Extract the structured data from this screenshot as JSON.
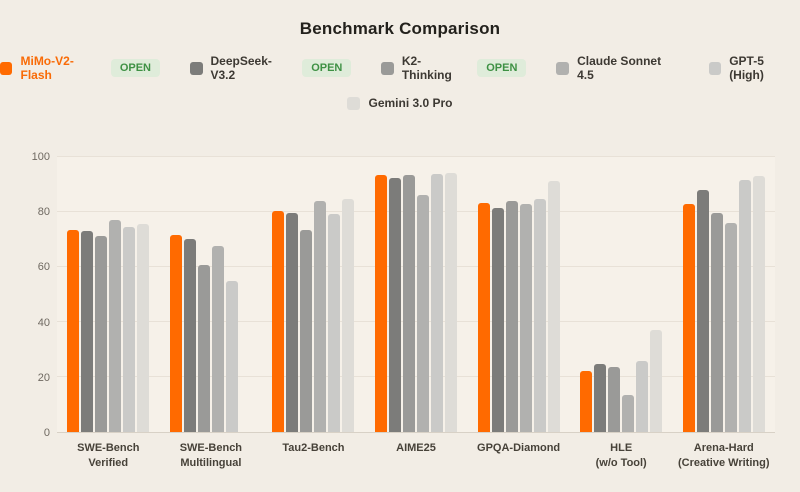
{
  "title": "Benchmark Comparison",
  "theme": {
    "page_bg": "#f2ede5",
    "plot_bg": "#f6f1e9",
    "gridline_color": "#e8e1d7",
    "axis_line_color": "#d8d1c6",
    "tick_text_color": "#6f6961",
    "x_label_color": "#474239",
    "title_color": "#23211c",
    "accent_orange": "#f96b07",
    "badge_bg": "#dfecda",
    "badge_text_color": "#3e9144"
  },
  "legend": {
    "rows": [
      [
        {
          "label": "MiMo-V2-Flash",
          "color": "#ff6a00",
          "label_color": "#f96b07",
          "badge": "OPEN"
        },
        {
          "label": "DeepSeek-V3.2",
          "color": "#7c7c7a",
          "badge": "OPEN"
        },
        {
          "label": "K2-Thinking",
          "color": "#9a9a98",
          "badge": "OPEN"
        },
        {
          "label": "Claude Sonnet 4.5",
          "color": "#b1b1af"
        },
        {
          "label": "GPT-5 (High)",
          "color": "#cacac8"
        }
      ],
      [
        {
          "label": "Gemini 3.0 Pro",
          "color": "#dedcd7"
        }
      ]
    ]
  },
  "chart_data": {
    "type": "bar",
    "title": "Benchmark Comparison",
    "categories": [
      "SWE-Bench\nVerified",
      "SWE-Bench\nMultilingual",
      "Tau2-Bench",
      "AIME25",
      "GPQA-Diamond",
      "HLE\n(w/o Tool)",
      "Arena-Hard\n(Creative Writing)"
    ],
    "series": [
      {
        "name": "MiMo-V2-Flash",
        "open": true,
        "color": "#ff6a00",
        "values": [
          73.4,
          71.5,
          80.2,
          93.6,
          83.3,
          22.1,
          82.8
        ]
      },
      {
        "name": "DeepSeek-V3.2",
        "open": true,
        "color": "#7c7c7a",
        "values": [
          73.0,
          70.2,
          79.6,
          92.5,
          81.6,
          24.9,
          88.1
        ]
      },
      {
        "name": "K2-Thinking",
        "open": true,
        "color": "#9a9a98",
        "values": [
          71.1,
          60.9,
          73.4,
          93.5,
          84.1,
          23.8,
          79.5
        ]
      },
      {
        "name": "Claude Sonnet 4.5",
        "open": false,
        "color": "#b1b1af",
        "values": [
          77.0,
          67.7,
          84.1,
          86.2,
          82.9,
          13.4,
          76.0
        ]
      },
      {
        "name": "GPT-5 (High)",
        "open": false,
        "color": "#cacac8",
        "values": [
          74.5,
          54.9,
          79.4,
          93.7,
          84.9,
          26.0,
          91.7
        ]
      },
      {
        "name": "Gemini 3.0 Pro",
        "open": false,
        "color": "#dedcd7",
        "values": [
          75.6,
          null,
          84.7,
          94.1,
          91.3,
          37.1,
          93.1
        ]
      }
    ],
    "ylim": [
      0,
      100
    ],
    "yticks": [
      0,
      20,
      40,
      60,
      80,
      100
    ],
    "grid": true,
    "legend_position": "top"
  }
}
